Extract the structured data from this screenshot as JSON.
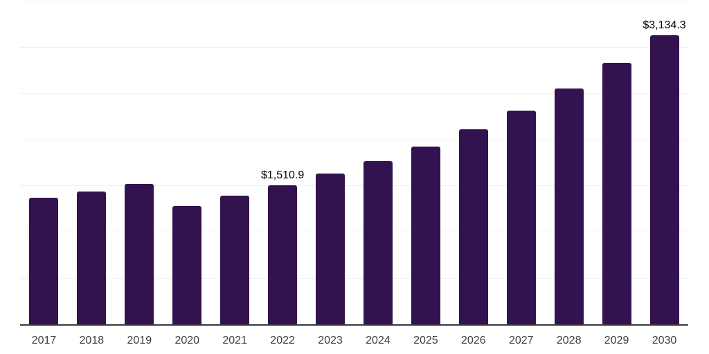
{
  "chart_data": {
    "type": "bar",
    "categories": [
      "2017",
      "2018",
      "2019",
      "2020",
      "2021",
      "2022",
      "2023",
      "2024",
      "2025",
      "2026",
      "2027",
      "2028",
      "2029",
      "2030"
    ],
    "values": [
      1378,
      1440,
      1524,
      1286,
      1402,
      1510.9,
      1637,
      1771,
      1931,
      2117,
      2318,
      2556,
      2835,
      3134.3
    ],
    "annotations": [
      {
        "category": "2022",
        "label": "$1,510.9"
      },
      {
        "category": "2030",
        "label": "$3,134.3"
      }
    ],
    "ylim": [
      0,
      3500
    ],
    "gridline_step": 500,
    "grid": true,
    "legend": "none",
    "xlabel": "",
    "ylabel": "",
    "colors": {
      "bar": "#33134F",
      "gridline": "#F0F0F0",
      "axis_line": "#3A3A3A",
      "tick_label": "#3D3D3D",
      "annotation": "#000000"
    }
  }
}
